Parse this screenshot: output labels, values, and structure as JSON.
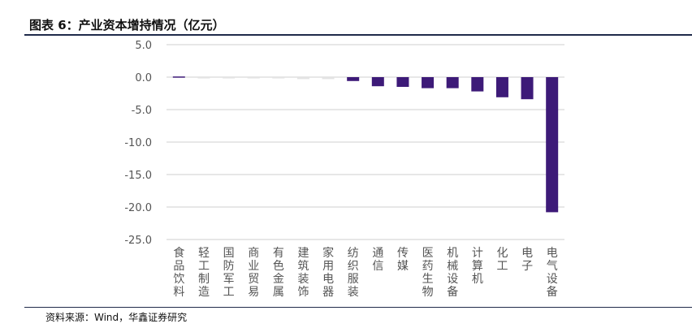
{
  "header": {
    "title": "图表 6：产业资本增持情况（亿元）"
  },
  "footer": {
    "source": "资料来源：Wind，华鑫证券研究"
  },
  "chart_data": {
    "type": "bar",
    "title": "图表 6：产业资本增持情况（亿元）",
    "xlabel": "",
    "ylabel": "",
    "ylim": [
      -25,
      5
    ],
    "yticks": [
      5,
      0,
      -5,
      -10,
      -15,
      -20,
      -25
    ],
    "ytick_labels": [
      "5.0",
      "0.0",
      "-5.0",
      "-10.0",
      "-15.0",
      "-20.0",
      "-25.0"
    ],
    "grid": true,
    "categories": [
      "食品饮料",
      "轻工制造",
      "国防军工",
      "商业贸易",
      "有色金属",
      "建筑装饰",
      "家用电器",
      "纺织服装",
      "通信",
      "传媒",
      "医药生物",
      "机械设备",
      "计算机",
      "化工",
      "电子",
      "电气设备"
    ],
    "values": [
      0.1,
      -0.2,
      -0.2,
      -0.2,
      -0.2,
      -0.3,
      -0.3,
      -0.6,
      -1.4,
      -1.5,
      -1.7,
      -1.7,
      -2.2,
      -3.1,
      -3.4,
      -20.8
    ],
    "bar_color": "#3d1a78",
    "faint_bar_color": "#e3e3e3",
    "grid_color": "#cfcfcf",
    "text_color": "#555555"
  }
}
